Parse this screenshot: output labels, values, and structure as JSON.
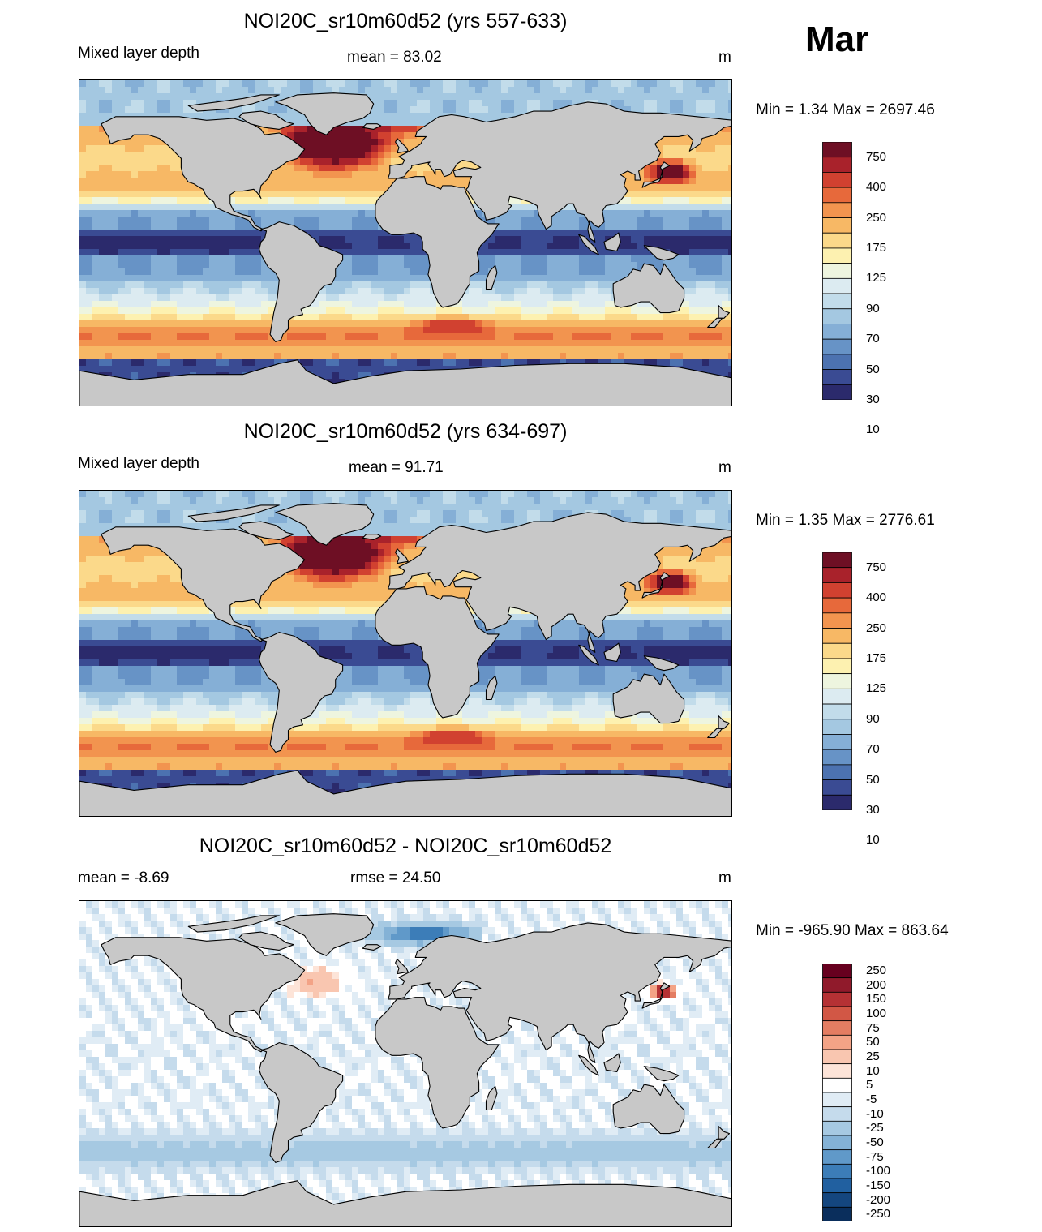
{
  "month": "Mar",
  "colors": {
    "land": "#c8c8c8",
    "ml_scale": [
      "#2b2a6c",
      "#3a4b93",
      "#4c72b0",
      "#6793c6",
      "#85afd6",
      "#a4c8e1",
      "#c2dcea",
      "#dcebf1",
      "#eef5df",
      "#fdf1b0",
      "#fbd98a",
      "#f7b865",
      "#f2944f",
      "#e7693b",
      "#d14130",
      "#a9222b",
      "#6e0f24"
    ],
    "diff_scale": [
      "#0a2e5c",
      "#14467f",
      "#2160a0",
      "#3c7db8",
      "#6099c9",
      "#84b2d6",
      "#a6c9e2",
      "#c5dbec",
      "#e0ecf5",
      "#ffffff",
      "#fde4d8",
      "#f9c6b0",
      "#f3a386",
      "#e47d62",
      "#d25745",
      "#b53134",
      "#901a2b",
      "#67001f"
    ]
  },
  "panels": [
    {
      "title": "NOI20C_sr10m60d52 (yrs 557-633)",
      "left_label": "Mixed layer depth",
      "center_label": "mean =  83.02",
      "unit": "m",
      "minmax": "Min =    1.34 Max = 2697.46",
      "colorbar_labels": [
        "750",
        "400",
        "250",
        "175",
        "125",
        "90",
        "70",
        "50",
        "30",
        "10"
      ],
      "kind": "ml"
    },
    {
      "title": "NOI20C_sr10m60d52 (yrs 634-697)",
      "left_label": "Mixed layer depth",
      "center_label": "mean =  91.71",
      "unit": "m",
      "minmax": "Min =    1.35 Max = 2776.61",
      "colorbar_labels": [
        "750",
        "400",
        "250",
        "175",
        "125",
        "90",
        "70",
        "50",
        "30",
        "10"
      ],
      "kind": "ml"
    },
    {
      "title": "NOI20C_sr10m60d52 - NOI20C_sr10m60d52",
      "left_label": "mean =  -8.69",
      "center_label": "rmse =  24.50",
      "unit": "m",
      "minmax": "Min = -965.90 Max = 863.64",
      "colorbar_labels": [
        "250",
        "200",
        "150",
        "100",
        "75",
        "50",
        "25",
        "10",
        "5",
        "-5",
        "-10",
        "-25",
        "-50",
        "-75",
        "-100",
        "-150",
        "-200",
        "-250"
      ],
      "kind": "diff"
    }
  ]
}
